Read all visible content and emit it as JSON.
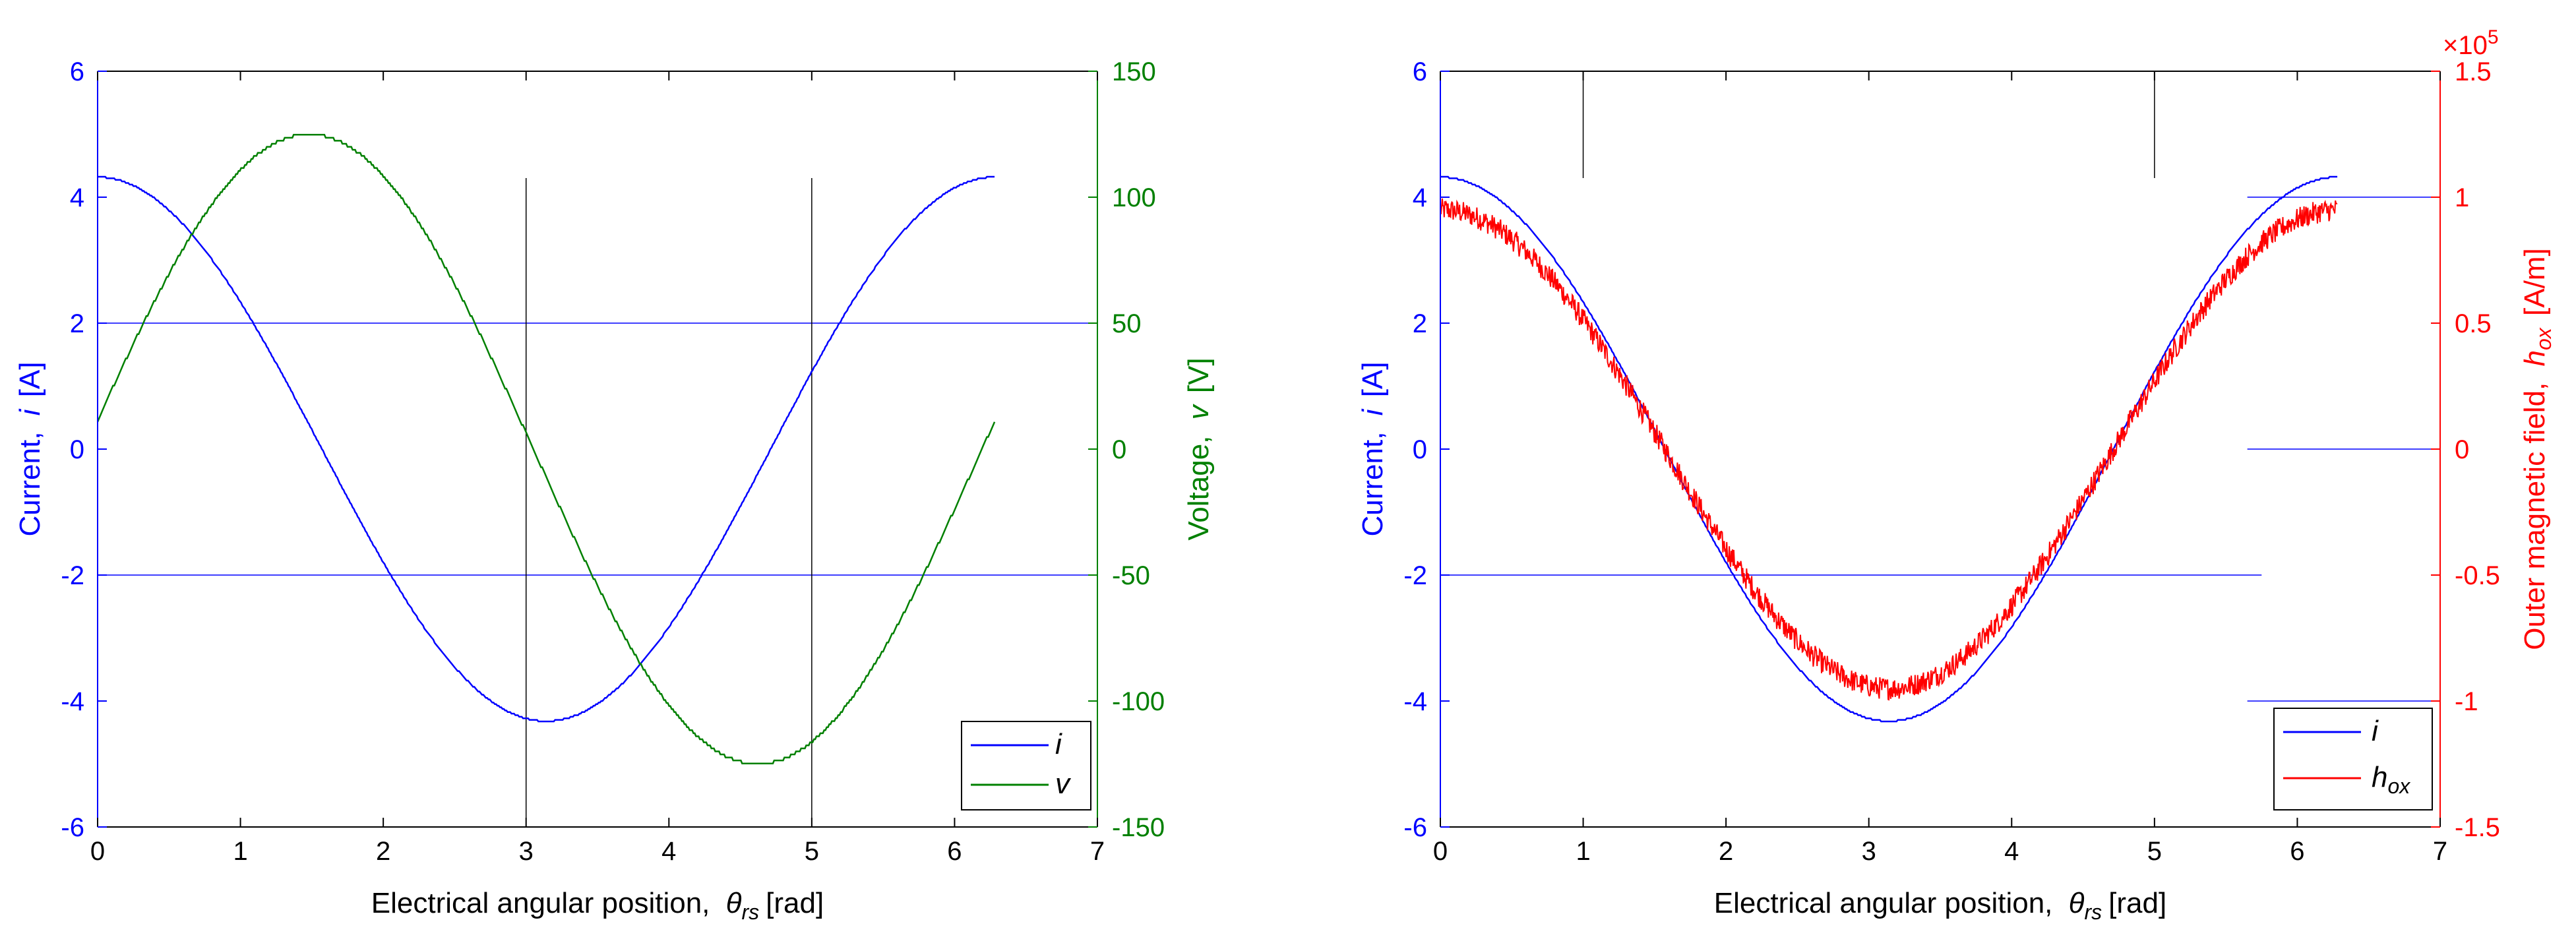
{
  "colors": {
    "axis": "#000000",
    "current": "#0000ff",
    "voltage": "#008000",
    "field": "#ff0000",
    "frame": "#000000"
  },
  "chart_data": [
    {
      "type": "line",
      "xlabel_main": "Electrical angular position,",
      "xlabel_sym": "θ",
      "xlabel_sub": "rs",
      "xlabel_unit": "[rad]",
      "ylabel_left_main": "Current,",
      "ylabel_left_sym": "i",
      "ylabel_left_unit": "[A]",
      "ylabel_right_main": "Voltage,",
      "ylabel_right_sym": "v",
      "ylabel_right_unit": "[V]",
      "xlim": [
        0,
        7
      ],
      "ylim_left": [
        -6,
        6
      ],
      "ylim_right": [
        -150,
        150
      ],
      "xticks": [
        "0",
        "1",
        "2",
        "3",
        "4",
        "5",
        "6",
        "7"
      ],
      "yticks_left": [
        "-6",
        "-4",
        "-2",
        "0",
        "2",
        "4",
        "6"
      ],
      "yticks_right": [
        "-150",
        "-100",
        "-50",
        "0",
        "50",
        "100",
        "150"
      ],
      "legend": {
        "entries": [
          "i",
          "v"
        ],
        "placement": "bottom-right"
      },
      "series": [
        {
          "name": "i",
          "axis": "left",
          "color": "#0000ff",
          "x_end": 6.28,
          "amplitude": 4.32,
          "phase": 0.0
        },
        {
          "name": "v",
          "axis": "right",
          "color": "#008000",
          "x_end": 6.28,
          "amplitude": 125,
          "phase": -1.48
        }
      ],
      "ref_lines": {
        "horizontal_left": [
          2,
          -2
        ],
        "vertical_x": [
          3,
          5
        ]
      }
    },
    {
      "type": "line",
      "xlabel_main": "Electrical angular position,",
      "xlabel_sym": "θ",
      "xlabel_sub": "rs",
      "xlabel_unit": "[rad]",
      "ylabel_left_main": "Current,",
      "ylabel_left_sym": "i",
      "ylabel_left_unit": "[A]",
      "ylabel_right_main": "Outer magnetic field,",
      "ylabel_right_sym": "h",
      "ylabel_right_sub": "ox",
      "ylabel_right_unit": "[A/m]",
      "right_exponent_base": "×10",
      "right_exponent_power": "5",
      "xlim": [
        0,
        7
      ],
      "ylim_left": [
        -6,
        6
      ],
      "ylim_right": [
        -1.5,
        1.5
      ],
      "xticks": [
        "0",
        "1",
        "2",
        "3",
        "4",
        "5",
        "6",
        "7"
      ],
      "yticks_left": [
        "-6",
        "-4",
        "-2",
        "0",
        "2",
        "4",
        "6"
      ],
      "yticks_right": [
        "-1.5",
        "-1",
        "-0.5",
        "0",
        "0.5",
        "1",
        "1.5"
      ],
      "legend": {
        "entries": [
          "i",
          "h"
        ],
        "entry_subs": [
          "",
          "ox"
        ],
        "placement": "bottom-right"
      },
      "series": [
        {
          "name": "i",
          "axis": "left",
          "color": "#0000ff",
          "x_end": 6.28,
          "amplitude": 4.32,
          "phase": 0.0
        },
        {
          "name": "h_ox",
          "axis": "right",
          "color": "#ff0000",
          "x_end": 6.28,
          "amplitude": 1.0,
          "phase": 0.0,
          "noisy": true
        }
      ],
      "ref_lines": {
        "horizontal_left": [
          -2
        ],
        "horizontal_right": [
          1,
          0,
          -1
        ],
        "vertical_x": [
          1,
          5
        ]
      }
    }
  ]
}
